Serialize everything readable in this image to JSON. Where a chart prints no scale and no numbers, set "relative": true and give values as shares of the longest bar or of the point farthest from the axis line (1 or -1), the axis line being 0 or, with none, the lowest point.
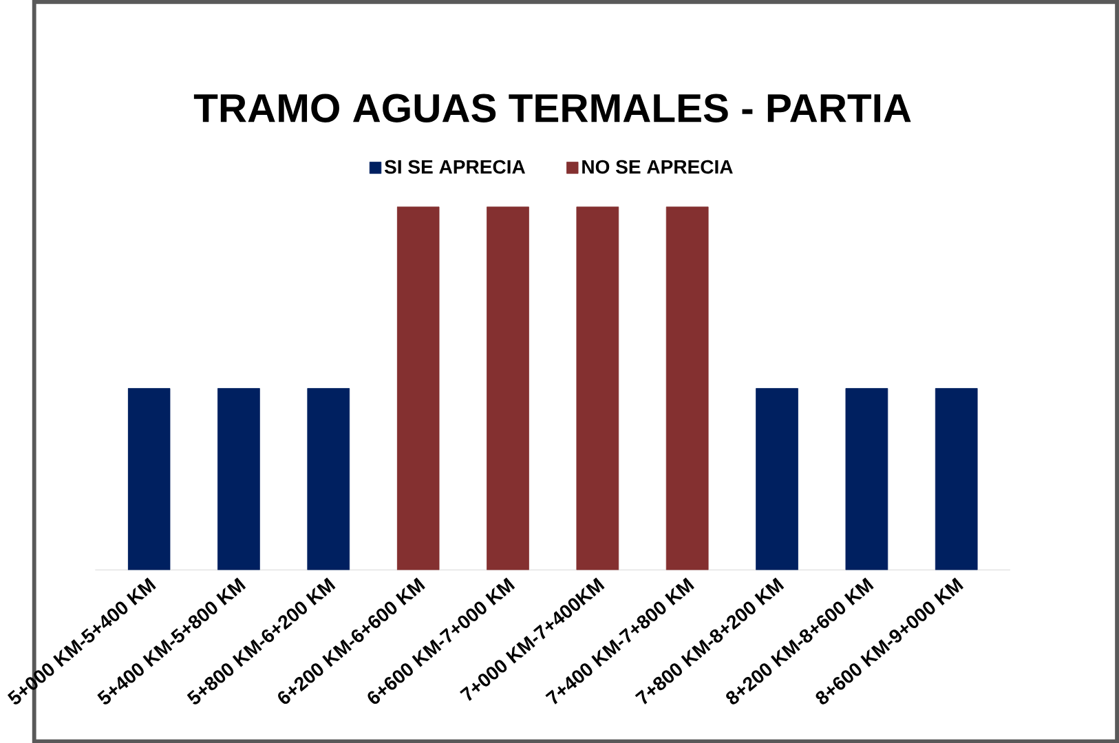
{
  "chart_data": {
    "type": "bar",
    "title": "TRAMO AGUAS TERMALES - PARTIA",
    "relative": true,
    "legend": "top",
    "categories": [
      "5+000 KM-5+400 KM",
      "5+400 KM-5+800 KM",
      "5+800 KM-6+200 KM",
      "6+200 KM-6+600 KM",
      "6+600 KM-7+000 KM",
      "7+000 KM-7+400KM",
      "7+400 KM-7+800 KM",
      "7+800 KM-8+200 KM",
      "8+200 KM-8+600 KM",
      "8+600 KM-9+000 KM"
    ],
    "series": [
      {
        "name": "SI SE APRECIA",
        "color": "#002060",
        "values": [
          0.5,
          0.5,
          0.5,
          null,
          null,
          null,
          null,
          0.5,
          0.5,
          0.5
        ]
      },
      {
        "name": "NO SE APRECIA",
        "color": "#843030",
        "values": [
          null,
          null,
          null,
          1,
          1,
          1,
          1,
          null,
          null,
          null
        ]
      }
    ]
  }
}
